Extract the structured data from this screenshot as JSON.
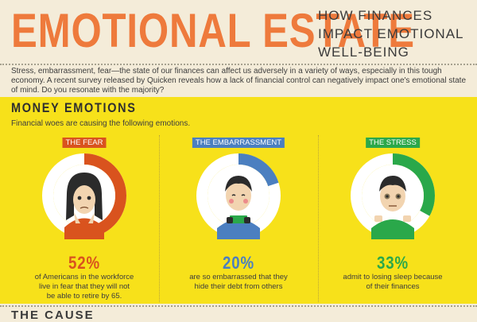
{
  "header": {
    "title": "EMOTIONAL ESTATE",
    "subtitle_line1": "HOW FINANCES",
    "subtitle_line2": "IMPACT EMOTIONAL",
    "subtitle_line3": "WELL-BEING"
  },
  "intro": "Stress, embarrassment, fear—the state of our finances can affect us adversely in a variety of ways, especially in this tough economy. A recent survey released by Quicken reveals how a lack of financial control can negatively impact one's emotional state of mind. Do you resonate with the majority?",
  "section": {
    "title": "MONEY EMOTIONS",
    "subtitle": "Financial woes are causing the following emotions."
  },
  "emotions": [
    {
      "label": "THE FEAR",
      "percent": "52%",
      "value": 0.52,
      "color": "#d9531e",
      "desc_line1": "of Americans in the workforce",
      "desc_line2": "live in fear that they will not",
      "desc_line3": "be able to retire by 65."
    },
    {
      "label": "THE EMBARRASSMENT",
      "percent": "20%",
      "value": 0.2,
      "color": "#4b7fc0",
      "desc_line1": "are so embarrassed that they",
      "desc_line2": "hide their debt from others",
      "desc_line3": ""
    },
    {
      "label": "THE STRESS",
      "percent": "33%",
      "value": 0.33,
      "color": "#2aa84a",
      "desc_line1": "admit to losing sleep because",
      "desc_line2": "of their finances",
      "desc_line3": ""
    }
  ],
  "next_section_partial": "THE CAUSE",
  "colors": {
    "title_orange": "#ee7a3c",
    "yellow_bg": "#f7e11a",
    "cream_bg": "#f4ecd9"
  }
}
